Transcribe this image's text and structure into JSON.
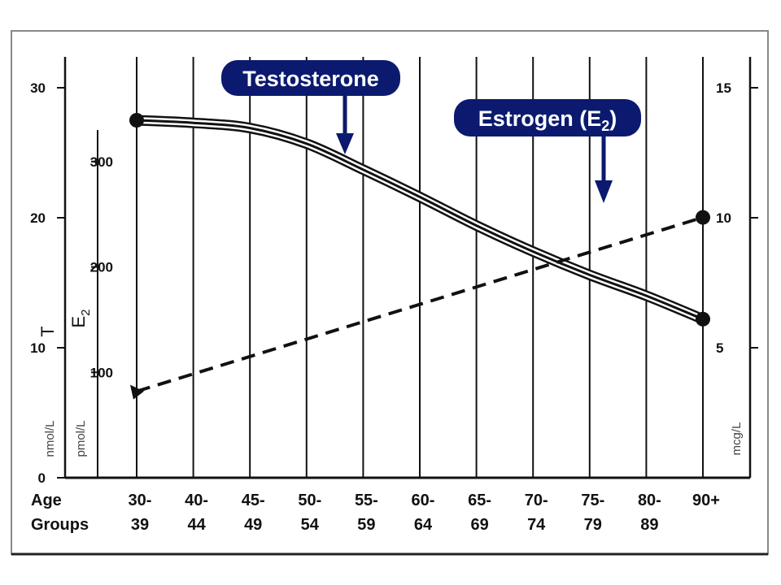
{
  "chart_data": {
    "type": "line",
    "categories": [
      [
        "30-",
        "39"
      ],
      [
        "40-",
        "44"
      ],
      [
        "45-",
        "49"
      ],
      [
        "50-",
        "54"
      ],
      [
        "55-",
        "59"
      ],
      [
        "60-",
        "64"
      ],
      [
        "65-",
        "69"
      ],
      [
        "70-",
        "74"
      ],
      [
        "75-",
        "79"
      ],
      [
        "80-",
        "89"
      ],
      [
        "90+",
        ""
      ]
    ],
    "row_labels": [
      "Age",
      "Groups"
    ],
    "series": [
      {
        "name": "Testosterone",
        "axis": "T",
        "style": "solid-double",
        "values": [
          27.5,
          27.3,
          26.9,
          25.7,
          23.7,
          21.6,
          19.4,
          17.4,
          15.6,
          14.0,
          12.2
        ]
      },
      {
        "name": "Estrogen (E",
        "name_subscript": "2",
        "name_suffix": ")",
        "axis": "E2",
        "style": "dashed",
        "values": [
          82,
          99,
          115,
          132,
          148,
          165,
          181,
          198,
          214,
          230,
          247
        ]
      }
    ],
    "axes": {
      "T": {
        "label": "T",
        "unit": "nmol/L",
        "range": [
          0,
          30
        ],
        "ticks": [
          "0",
          "10",
          "20",
          "30"
        ]
      },
      "E2": {
        "label": "E",
        "label_sub": "2",
        "unit": "pmol/L",
        "range": [
          0,
          370
        ],
        "ticks": [
          "100",
          "200",
          "300"
        ],
        "tick_values": [
          100,
          200,
          300
        ]
      },
      "right": {
        "unit": "mcg/L",
        "range": [
          0,
          15
        ],
        "ticks": [
          "5",
          "10",
          "15"
        ],
        "tick_values": [
          5,
          10,
          15
        ]
      }
    },
    "grid": "vertical lines at each age group",
    "colors": {
      "badge": "#0b1a6e",
      "ink": "#111111"
    }
  }
}
